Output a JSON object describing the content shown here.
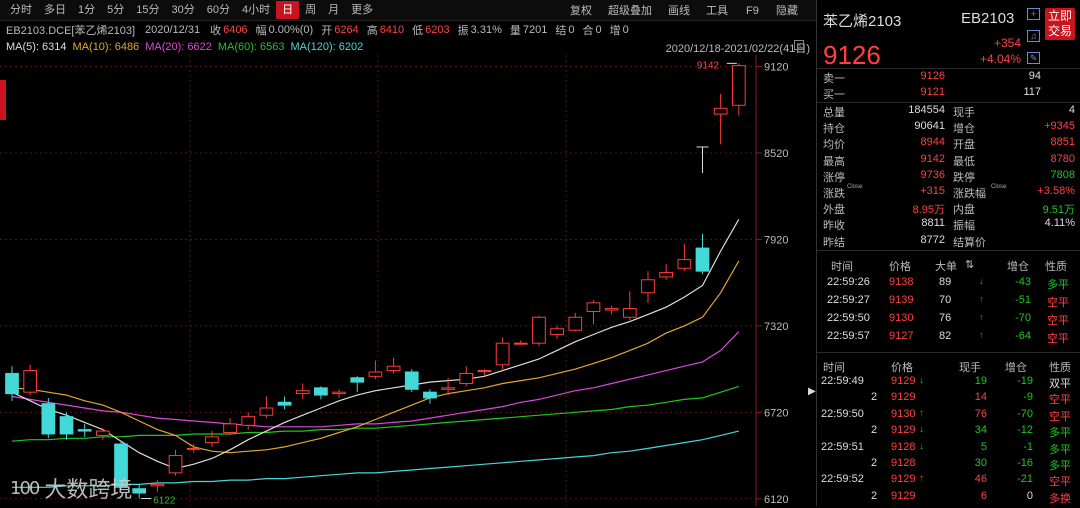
{
  "toolbar": {
    "periods": [
      "分时",
      "多日",
      "1分",
      "5分",
      "15分",
      "30分",
      "60分",
      "4小时",
      "日",
      "周",
      "月",
      "更多"
    ],
    "active_period": "日",
    "tools": [
      "复权",
      "超级叠加",
      "画线",
      "工具",
      "F9",
      "隐藏"
    ]
  },
  "info": {
    "symbol": "EB2103.DCE[苯乙烯2103]",
    "date": "2020/12/31",
    "close_label": "收",
    "close": "6406",
    "amp_label": "幅",
    "amp": "0.00%(0)",
    "open_label": "开",
    "open": "6264",
    "high_label": "高",
    "high": "6410",
    "low_label": "低",
    "low": "6203",
    "swing_label": "振",
    "swing": "3.31%",
    "vol_label": "量",
    "vol": "7201",
    "settle_label": "结",
    "settle": "0",
    "oi_label": "合",
    "oi": "0",
    "inc_label": "增",
    "inc": "0"
  },
  "ma": [
    {
      "label": "MA(5): 6314",
      "color": "#dddddd"
    },
    {
      "label": "MA(10): 6486",
      "color": "#e2a82a"
    },
    {
      "label": "MA(20): 6622",
      "color": "#d94ad9"
    },
    {
      "label": "MA(60): 6563",
      "color": "#1ec81e"
    },
    {
      "label": "MA(120): 6202",
      "color": "#43d9d9"
    }
  ],
  "range_label": "2020/12/18-2021/02/22(41日)",
  "quote": {
    "name": "苯乙烯2103",
    "code": "EB2103",
    "price": "9126",
    "change": "+354",
    "change_pct": "+4.04%",
    "trade_button": "立即交易",
    "sell1_label": "卖一",
    "sell1_price": "9126",
    "sell1_vol": "94",
    "buy1_label": "买一",
    "buy1_price": "9121",
    "buy1_vol": "117",
    "stats": [
      {
        "l1": "总量",
        "v1": "184554",
        "c1": "wht",
        "l2": "现手",
        "v2": "4",
        "c2": "wht"
      },
      {
        "l1": "持仓",
        "v1": "90641",
        "c1": "wht",
        "l2": "增仓",
        "v2": "+9345",
        "c2": "red"
      },
      {
        "l1": "均价",
        "v1": "8944",
        "c1": "red",
        "l2": "开盘",
        "v2": "8851",
        "c2": "red"
      },
      {
        "l1": "最高",
        "v1": "9142",
        "c1": "red",
        "l2": "最低",
        "v2": "8780",
        "c2": "red"
      },
      {
        "l1": "涨停",
        "v1": "9736",
        "c1": "red",
        "l2": "跌停",
        "v2": "7808",
        "c2": "grn"
      },
      {
        "l1": "涨跌",
        "v1": "+315",
        "c1": "red",
        "l2": "涨跌幅",
        "v2": "+3.58%",
        "c2": "red",
        "sup1": "Close",
        "sup2": "Close"
      },
      {
        "l1": "外盘",
        "v1": "8.95万",
        "c1": "red",
        "l2": "内盘",
        "v2": "9.51万",
        "c2": "grn"
      },
      {
        "l1": "昨收",
        "v1": "8811",
        "c1": "wht",
        "l2": "振幅",
        "v2": "4.11%",
        "c2": "wht"
      },
      {
        "l1": "昨结",
        "v1": "8772",
        "c1": "wht",
        "l2": "结算价",
        "v2": "",
        "c2": "wht"
      }
    ]
  },
  "big_trades": {
    "headers": [
      "时间",
      "价格",
      "大单",
      "",
      "增仓",
      "性质"
    ],
    "rows": [
      {
        "time": "22:59:26",
        "price": "9138",
        "vol": "89",
        "dir": "down",
        "inc": "-43",
        "nature": "多平"
      },
      {
        "time": "22:59:27",
        "price": "9139",
        "vol": "70",
        "dir": "up",
        "inc": "-51",
        "nature": "空平"
      },
      {
        "time": "22:59:50",
        "price": "9130",
        "vol": "76",
        "dir": "up",
        "inc": "-70",
        "nature": "空平"
      },
      {
        "time": "22:59:57",
        "price": "9127",
        "vol": "82",
        "dir": "up",
        "inc": "-64",
        "nature": "空平"
      }
    ]
  },
  "ticks": {
    "headers": [
      "时间",
      "价格",
      "现手",
      "增仓",
      "性质"
    ],
    "rows": [
      {
        "time": "22:59:49",
        "price": "9129",
        "dir": "down",
        "vol": "19",
        "inc": "-19",
        "nature": "双平"
      },
      {
        "time": "2",
        "price": "9129",
        "dir": "",
        "vol": "14",
        "inc": "-9",
        "nature": "空平"
      },
      {
        "time": "22:59:50",
        "price": "9130",
        "dir": "up",
        "vol": "76",
        "inc": "-70",
        "nature": "空平"
      },
      {
        "time": "2",
        "price": "9129",
        "dir": "down",
        "vol": "34",
        "inc": "-12",
        "nature": "多平"
      },
      {
        "time": "22:59:51",
        "price": "9128",
        "dir": "down",
        "vol": "5",
        "inc": "-1",
        "nature": "多平"
      },
      {
        "time": "2",
        "price": "9128",
        "dir": "",
        "vol": "30",
        "inc": "-16",
        "nature": "多平"
      },
      {
        "time": "22:59:52",
        "price": "9129",
        "dir": "up",
        "vol": "46",
        "inc": "-21",
        "nature": "空平"
      },
      {
        "time": "2",
        "price": "9129",
        "dir": "",
        "vol": "6",
        "inc": "0",
        "nature": "多换"
      }
    ]
  },
  "watermark": "大数跨境",
  "watermark_logo": "100",
  "chart_data": {
    "type": "candlestick",
    "y_ticks": [
      9120,
      8520,
      7920,
      7320,
      6720,
      6120
    ],
    "ylim": [
      6070,
      9200
    ],
    "high_label": "9142",
    "low_label": "6122",
    "candles": [
      [
        6990,
        6850,
        7040,
        6800
      ],
      [
        6860,
        7010,
        7050,
        6840
      ],
      [
        6780,
        6570,
        6820,
        6540
      ],
      [
        6690,
        6570,
        6720,
        6530
      ],
      [
        6600,
        6590,
        6640,
        6550
      ],
      [
        6560,
        6590,
        6610,
        6530
      ],
      [
        6500,
        6200,
        6520,
        6180
      ],
      [
        6190,
        6160,
        6220,
        6122
      ],
      [
        6210,
        6220,
        6250,
        6170
      ],
      [
        6300,
        6420,
        6460,
        6280
      ],
      [
        6470,
        6470,
        6500,
        6440
      ],
      [
        6510,
        6550,
        6590,
        6480
      ],
      [
        6580,
        6640,
        6680,
        6560
      ],
      [
        6630,
        6690,
        6720,
        6600
      ],
      [
        6700,
        6750,
        6830,
        6680
      ],
      [
        6790,
        6770,
        6830,
        6740
      ],
      [
        6850,
        6870,
        6920,
        6810
      ],
      [
        6890,
        6840,
        6900,
        6810
      ],
      [
        6850,
        6860,
        6880,
        6820
      ],
      [
        6960,
        6930,
        6970,
        6860
      ],
      [
        6970,
        7000,
        7080,
        6950
      ],
      [
        7010,
        7040,
        7100,
        6990
      ],
      [
        7000,
        6880,
        7020,
        6860
      ],
      [
        6860,
        6820,
        6880,
        6780
      ],
      [
        6880,
        6890,
        6960,
        6840
      ],
      [
        6920,
        6990,
        7040,
        6900
      ],
      [
        7010,
        7010,
        7020,
        6970
      ],
      [
        7050,
        7200,
        7240,
        7020
      ],
      [
        7200,
        7200,
        7220,
        7190
      ],
      [
        7200,
        7380,
        7390,
        7180
      ],
      [
        7260,
        7300,
        7320,
        7230
      ],
      [
        7290,
        7380,
        7410,
        7280
      ],
      [
        7420,
        7480,
        7500,
        7330
      ],
      [
        7430,
        7440,
        7460,
        7400
      ],
      [
        7380,
        7440,
        7560,
        7360
      ],
      [
        7550,
        7640,
        7700,
        7480
      ],
      [
        7660,
        7690,
        7750,
        7640
      ],
      [
        7720,
        7780,
        7890,
        7700
      ],
      [
        7860,
        7700,
        7960,
        7680
      ],
      [
        8790,
        8830,
        8930,
        8580
      ],
      [
        8851,
        9126,
        9142,
        8780
      ]
    ],
    "ma5": [
      6860,
      6800,
      6740,
      6700,
      6650,
      6600,
      6520,
      6440,
      6380,
      6330,
      6360,
      6400,
      6460,
      6530,
      6590,
      6650,
      6700,
      6750,
      6800,
      6840,
      6870,
      6890,
      6910,
      6930,
      6940,
      6950,
      6970,
      7010,
      7050,
      7090,
      7150,
      7210,
      7260,
      7310,
      7350,
      7400,
      7450,
      7520,
      7600,
      7840,
      8060
    ],
    "ma10": [
      6890,
      6880,
      6860,
      6840,
      6800,
      6770,
      6720,
      6660,
      6600,
      6560,
      6480,
      6450,
      6440,
      6450,
      6460,
      6480,
      6510,
      6540,
      6580,
      6620,
      6670,
      6720,
      6770,
      6820,
      6850,
      6870,
      6890,
      6920,
      6940,
      6960,
      6990,
      7020,
      7060,
      7100,
      7150,
      7200,
      7270,
      7320,
      7380,
      7550,
      7770
    ],
    "ma20": [
      6830,
      6810,
      6790,
      6770,
      6750,
      6730,
      6720,
      6700,
      6680,
      6670,
      6660,
      6650,
      6640,
      6630,
      6620,
      6620,
      6620,
      6620,
      6630,
      6640,
      6640,
      6650,
      6660,
      6680,
      6700,
      6720,
      6740,
      6760,
      6790,
      6810,
      6840,
      6870,
      6890,
      6920,
      6950,
      6980,
      7010,
      7040,
      7070,
      7150,
      7280
    ],
    "ma60": [
      6520,
      6530,
      6530,
      6540,
      6540,
      6550,
      6550,
      6560,
      6560,
      6560,
      6570,
      6570,
      6570,
      6580,
      6580,
      6590,
      6590,
      6600,
      6600,
      6610,
      6610,
      6620,
      6630,
      6640,
      6650,
      6660,
      6670,
      6680,
      6690,
      6700,
      6710,
      6720,
      6730,
      6740,
      6760,
      6770,
      6790,
      6810,
      6820,
      6860,
      6900
    ],
    "ma120": [
      6200,
      6200,
      6200,
      6210,
      6210,
      6210,
      6220,
      6220,
      6230,
      6230,
      6240,
      6240,
      6250,
      6250,
      6260,
      6260,
      6270,
      6280,
      6290,
      6300,
      6300,
      6310,
      6320,
      6330,
      6340,
      6350,
      6360,
      6370,
      6380,
      6390,
      6400,
      6410,
      6420,
      6440,
      6450,
      6470,
      6490,
      6510,
      6530,
      6560,
      6590
    ]
  }
}
